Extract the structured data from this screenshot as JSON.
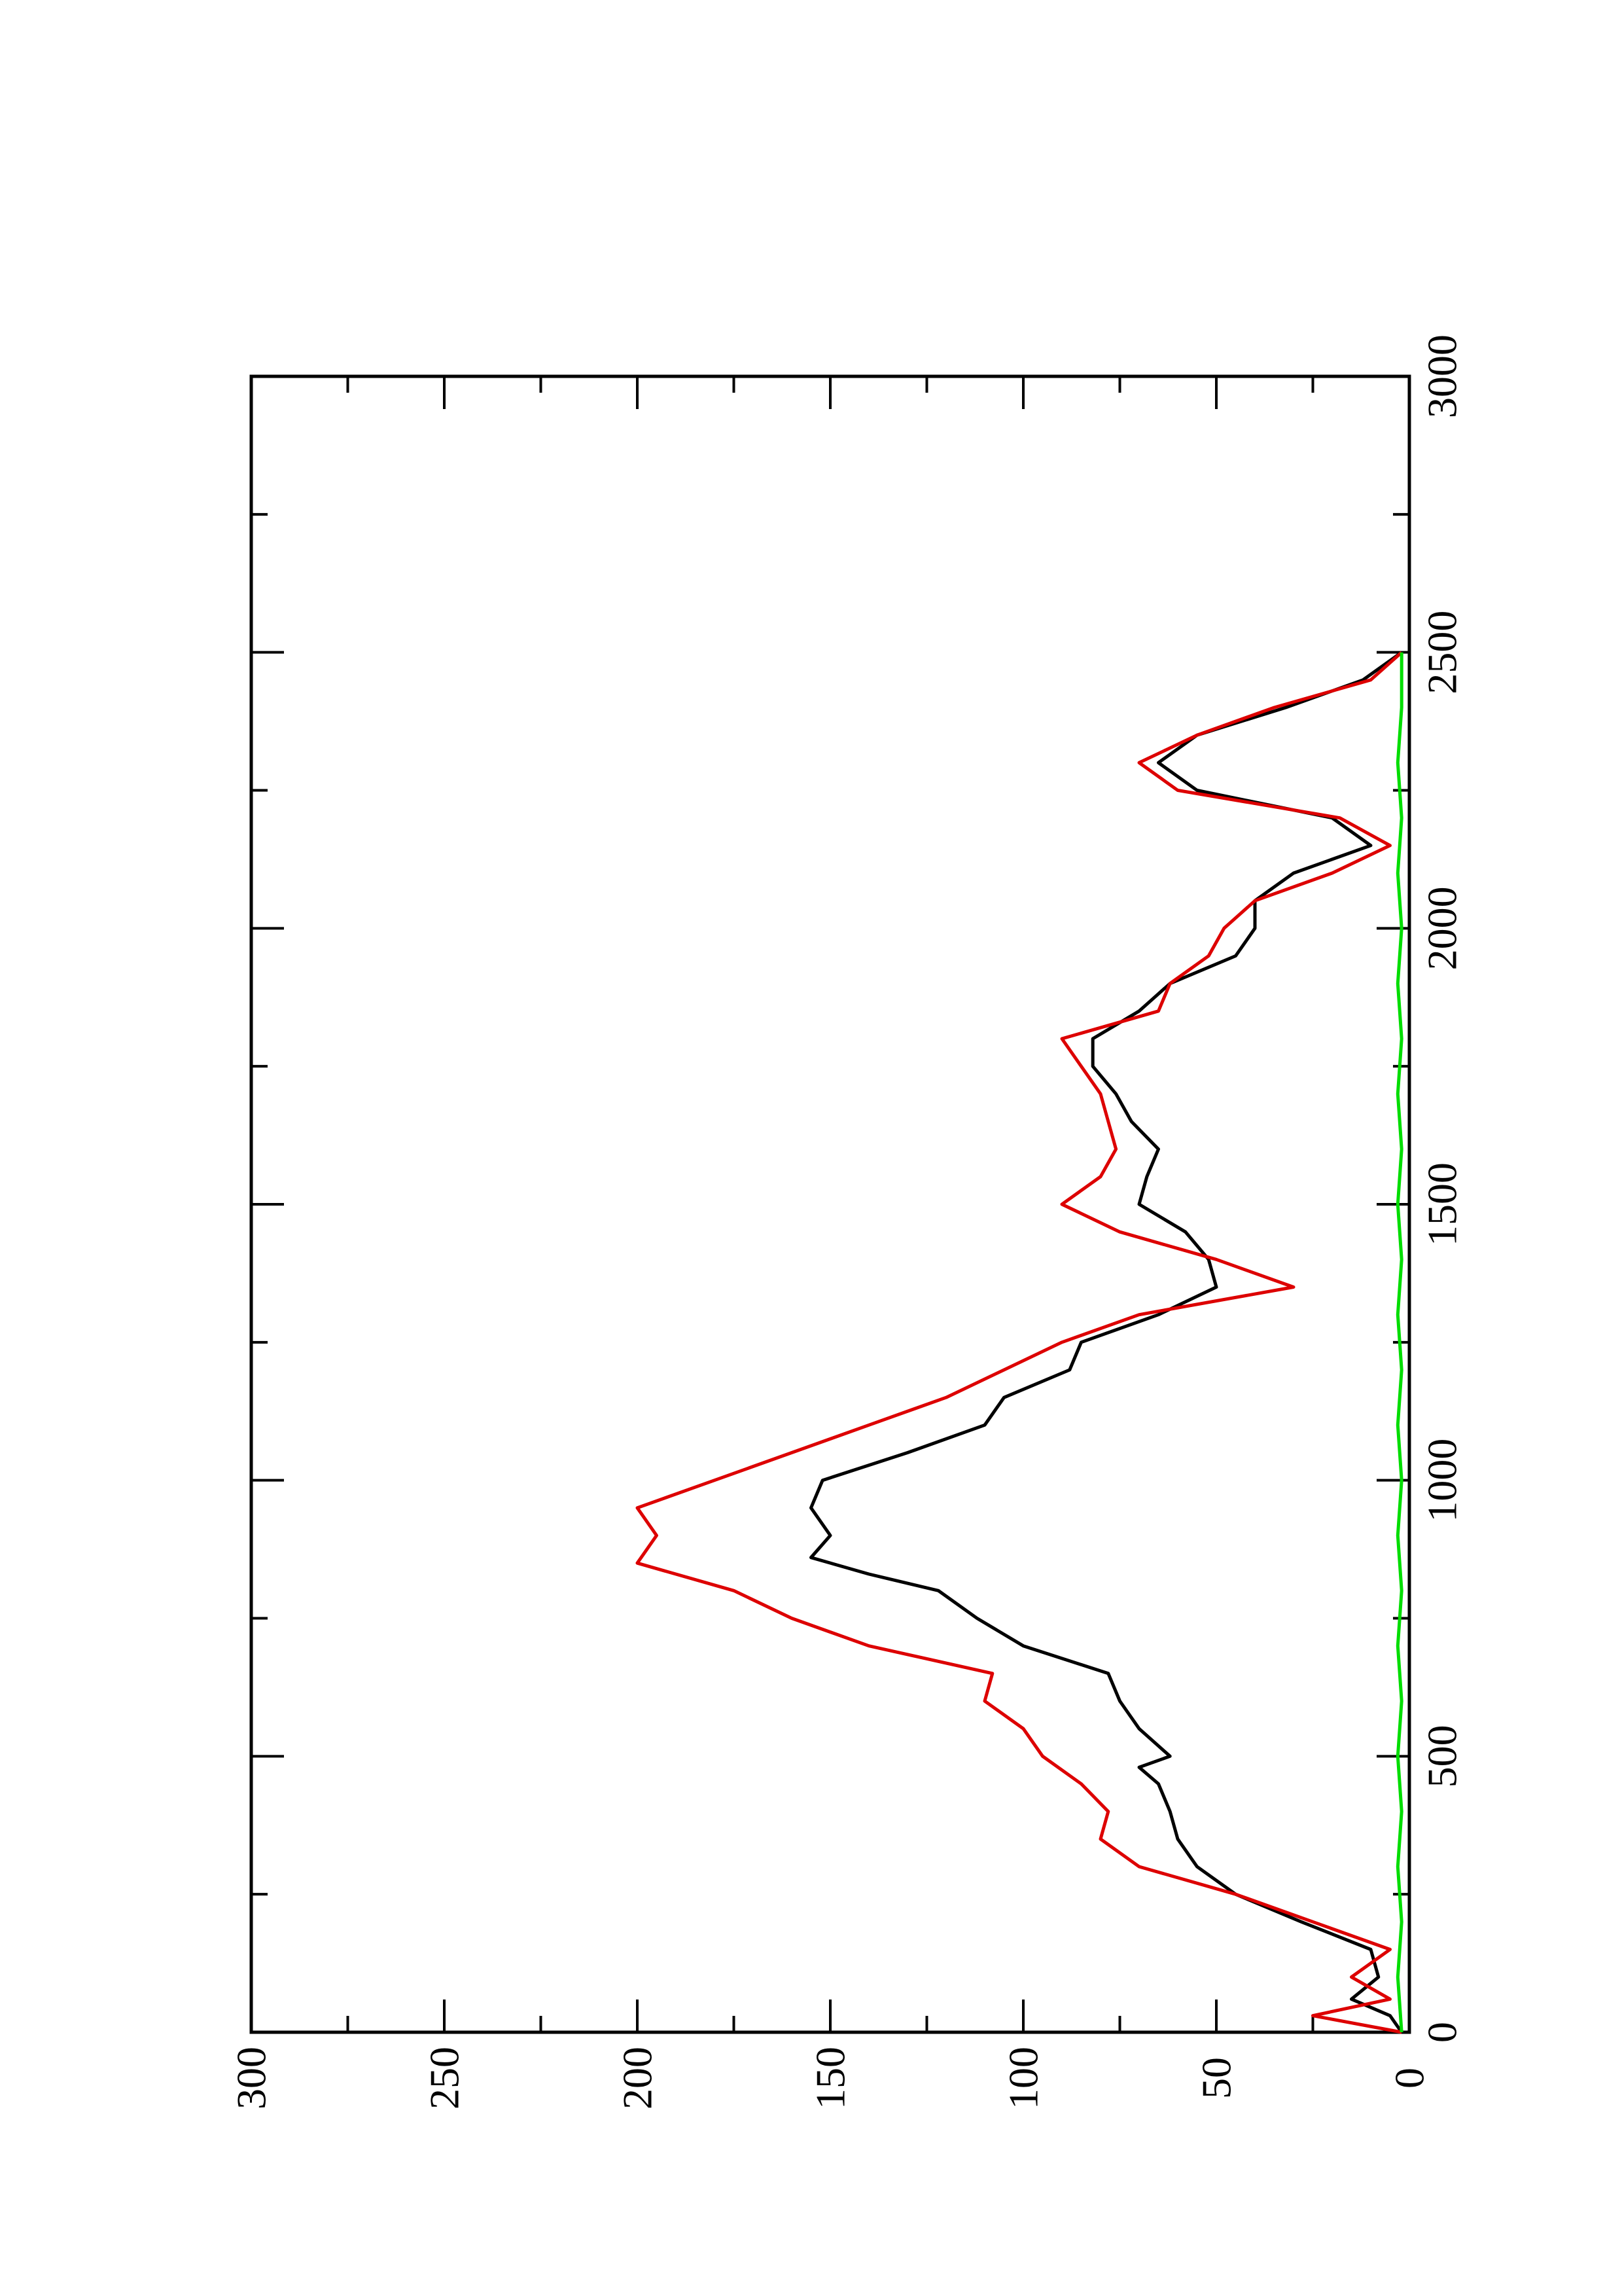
{
  "chart_data": {
    "type": "line",
    "title": "",
    "xlabel": "",
    "ylabel": "",
    "orientation": "rotated-90-ccw",
    "xlim": [
      0,
      3000
    ],
    "ylim": [
      0,
      300
    ],
    "x_ticks": [
      "0",
      "500",
      "1000",
      "1500",
      "2000",
      "2500",
      "3000"
    ],
    "y_ticks": [
      "0",
      "50",
      "100",
      "150",
      "200",
      "250",
      "300"
    ],
    "grid": false,
    "legend": "none",
    "series": [
      {
        "color": "#000000",
        "points": [
          [
            0,
            2
          ],
          [
            30,
            5
          ],
          [
            60,
            15
          ],
          [
            100,
            8
          ],
          [
            150,
            10
          ],
          [
            200,
            28
          ],
          [
            250,
            45
          ],
          [
            300,
            55
          ],
          [
            350,
            60
          ],
          [
            400,
            62
          ],
          [
            450,
            65
          ],
          [
            480,
            70
          ],
          [
            500,
            62
          ],
          [
            550,
            70
          ],
          [
            600,
            75
          ],
          [
            650,
            78
          ],
          [
            700,
            100
          ],
          [
            750,
            112
          ],
          [
            800,
            122
          ],
          [
            830,
            140
          ],
          [
            860,
            155
          ],
          [
            900,
            150
          ],
          [
            950,
            155
          ],
          [
            1000,
            152
          ],
          [
            1050,
            130
          ],
          [
            1100,
            110
          ],
          [
            1150,
            105
          ],
          [
            1200,
            88
          ],
          [
            1250,
            85
          ],
          [
            1300,
            65
          ],
          [
            1350,
            50
          ],
          [
            1400,
            52
          ],
          [
            1450,
            58
          ],
          [
            1500,
            70
          ],
          [
            1550,
            68
          ],
          [
            1600,
            65
          ],
          [
            1650,
            72
          ],
          [
            1700,
            76
          ],
          [
            1750,
            82
          ],
          [
            1800,
            82
          ],
          [
            1850,
            70
          ],
          [
            1900,
            62
          ],
          [
            1950,
            45
          ],
          [
            2000,
            40
          ],
          [
            2050,
            40
          ],
          [
            2100,
            30
          ],
          [
            2150,
            10
          ],
          [
            2200,
            20
          ],
          [
            2250,
            55
          ],
          [
            2300,
            65
          ],
          [
            2350,
            55
          ],
          [
            2400,
            32
          ],
          [
            2450,
            12
          ],
          [
            2500,
            2
          ]
        ]
      },
      {
        "color": "#dd0000",
        "points": [
          [
            0,
            2
          ],
          [
            30,
            25
          ],
          [
            60,
            5
          ],
          [
            100,
            15
          ],
          [
            150,
            5
          ],
          [
            200,
            25
          ],
          [
            250,
            45
          ],
          [
            300,
            70
          ],
          [
            350,
            80
          ],
          [
            400,
            78
          ],
          [
            450,
            85
          ],
          [
            500,
            95
          ],
          [
            550,
            100
          ],
          [
            600,
            110
          ],
          [
            650,
            108
          ],
          [
            700,
            140
          ],
          [
            750,
            160
          ],
          [
            800,
            175
          ],
          [
            850,
            200
          ],
          [
            900,
            195
          ],
          [
            950,
            200
          ],
          [
            1000,
            180
          ],
          [
            1050,
            160
          ],
          [
            1100,
            140
          ],
          [
            1150,
            120
          ],
          [
            1200,
            105
          ],
          [
            1250,
            90
          ],
          [
            1300,
            70
          ],
          [
            1350,
            30
          ],
          [
            1400,
            50
          ],
          [
            1450,
            75
          ],
          [
            1500,
            90
          ],
          [
            1550,
            80
          ],
          [
            1600,
            76
          ],
          [
            1650,
            78
          ],
          [
            1700,
            80
          ],
          [
            1750,
            85
          ],
          [
            1800,
            90
          ],
          [
            1850,
            65
          ],
          [
            1900,
            62
          ],
          [
            1950,
            52
          ],
          [
            2000,
            48
          ],
          [
            2050,
            40
          ],
          [
            2100,
            20
          ],
          [
            2150,
            5
          ],
          [
            2200,
            18
          ],
          [
            2250,
            60
          ],
          [
            2300,
            70
          ],
          [
            2350,
            55
          ],
          [
            2400,
            35
          ],
          [
            2450,
            10
          ],
          [
            2500,
            2
          ]
        ]
      },
      {
        "color": "#00dd00",
        "points": [
          [
            0,
            2
          ],
          [
            100,
            3
          ],
          [
            200,
            2
          ],
          [
            300,
            3
          ],
          [
            400,
            2
          ],
          [
            500,
            3
          ],
          [
            600,
            2
          ],
          [
            700,
            3
          ],
          [
            800,
            2
          ],
          [
            900,
            3
          ],
          [
            1000,
            2
          ],
          [
            1100,
            3
          ],
          [
            1200,
            2
          ],
          [
            1300,
            3
          ],
          [
            1400,
            2
          ],
          [
            1500,
            3
          ],
          [
            1600,
            2
          ],
          [
            1700,
            3
          ],
          [
            1800,
            2
          ],
          [
            1900,
            3
          ],
          [
            2000,
            2
          ],
          [
            2100,
            3
          ],
          [
            2200,
            2
          ],
          [
            2300,
            3
          ],
          [
            2400,
            2
          ],
          [
            2500,
            2
          ]
        ]
      }
    ]
  }
}
